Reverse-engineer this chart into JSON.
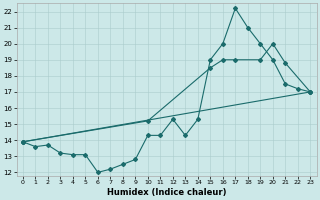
{
  "xlabel": "Humidex (Indice chaleur)",
  "xlim": [
    -0.5,
    23.5
  ],
  "ylim": [
    11.8,
    22.5
  ],
  "yticks": [
    12,
    13,
    14,
    15,
    16,
    17,
    18,
    19,
    20,
    21,
    22
  ],
  "xticks": [
    0,
    1,
    2,
    3,
    4,
    5,
    6,
    7,
    8,
    9,
    10,
    11,
    12,
    13,
    14,
    15,
    16,
    17,
    18,
    19,
    20,
    21,
    22,
    23
  ],
  "bg_color": "#cce8e8",
  "line_color": "#1a6b6b",
  "line1_x": [
    0,
    1,
    2,
    3,
    4,
    5,
    6,
    7,
    8,
    9,
    10,
    11,
    12,
    13,
    14,
    15,
    16,
    17,
    18,
    19,
    20,
    21,
    22,
    23
  ],
  "line1_y": [
    13.9,
    13.6,
    13.7,
    13.2,
    13.1,
    13.1,
    12.0,
    12.2,
    12.5,
    12.8,
    14.3,
    14.3,
    15.3,
    14.3,
    15.3,
    19.0,
    20.0,
    22.2,
    21.0,
    20.0,
    19.0,
    17.5,
    17.2,
    17.0
  ],
  "line2_x": [
    0,
    10,
    15,
    16,
    17,
    19,
    20,
    21,
    23
  ],
  "line2_y": [
    13.9,
    15.2,
    18.5,
    19.0,
    19.0,
    19.0,
    20.0,
    18.8,
    17.0
  ],
  "line3_x": [
    0,
    23
  ],
  "line3_y": [
    13.9,
    17.0
  ]
}
